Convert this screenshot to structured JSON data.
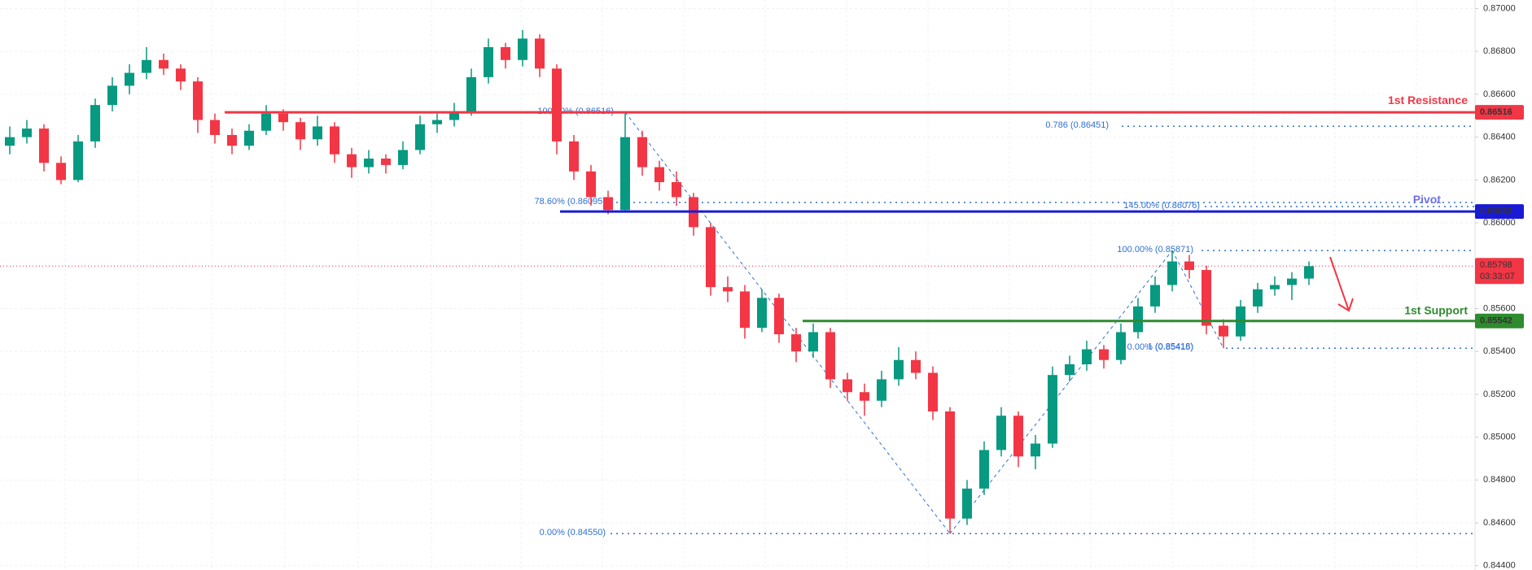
{
  "chart_data": {
    "type": "candlestick",
    "ohlc": [
      [
        0.8636,
        0.8645,
        0.8632,
        0.864
      ],
      [
        0.864,
        0.8648,
        0.8637,
        0.8644
      ],
      [
        0.8644,
        0.8646,
        0.8624,
        0.8628
      ],
      [
        0.8628,
        0.8631,
        0.8618,
        0.862
      ],
      [
        0.862,
        0.8641,
        0.8619,
        0.8638
      ],
      [
        0.8638,
        0.8658,
        0.8635,
        0.8655
      ],
      [
        0.8655,
        0.8668,
        0.8652,
        0.8664
      ],
      [
        0.8664,
        0.8674,
        0.866,
        0.867
      ],
      [
        0.867,
        0.8682,
        0.8667,
        0.8676
      ],
      [
        0.8676,
        0.8679,
        0.8669,
        0.8672
      ],
      [
        0.8672,
        0.8674,
        0.8662,
        0.8666
      ],
      [
        0.8666,
        0.8668,
        0.8642,
        0.8648
      ],
      [
        0.8648,
        0.8651,
        0.8637,
        0.8641
      ],
      [
        0.8641,
        0.8644,
        0.8632,
        0.8636
      ],
      [
        0.8636,
        0.8646,
        0.8634,
        0.8643
      ],
      [
        0.8643,
        0.8655,
        0.8641,
        0.8651
      ],
      [
        0.8651,
        0.8653,
        0.8643,
        0.8647
      ],
      [
        0.8647,
        0.8649,
        0.8634,
        0.8639
      ],
      [
        0.8639,
        0.865,
        0.8636,
        0.8645
      ],
      [
        0.8645,
        0.8647,
        0.8628,
        0.8632
      ],
      [
        0.8632,
        0.8635,
        0.8621,
        0.8626
      ],
      [
        0.8626,
        0.8634,
        0.8623,
        0.863
      ],
      [
        0.863,
        0.8632,
        0.8623,
        0.8627
      ],
      [
        0.8627,
        0.8638,
        0.8625,
        0.8634
      ],
      [
        0.8634,
        0.865,
        0.8632,
        0.8646
      ],
      [
        0.8646,
        0.8651,
        0.8642,
        0.8648
      ],
      [
        0.8648,
        0.8656,
        0.8645,
        0.8652
      ],
      [
        0.8652,
        0.8672,
        0.865,
        0.8668
      ],
      [
        0.8668,
        0.8686,
        0.8665,
        0.8682
      ],
      [
        0.8682,
        0.8684,
        0.8672,
        0.8676
      ],
      [
        0.8676,
        0.869,
        0.8673,
        0.8686
      ],
      [
        0.8686,
        0.8688,
        0.8668,
        0.8672
      ],
      [
        0.8672,
        0.8674,
        0.8632,
        0.8638
      ],
      [
        0.8638,
        0.8641,
        0.862,
        0.8624
      ],
      [
        0.8624,
        0.8627,
        0.8608,
        0.8612
      ],
      [
        0.8612,
        0.8615,
        0.8604,
        0.8606
      ],
      [
        0.8606,
        0.86516,
        0.8605,
        0.864
      ],
      [
        0.864,
        0.8643,
        0.8622,
        0.8626
      ],
      [
        0.8626,
        0.8629,
        0.8615,
        0.8619
      ],
      [
        0.8619,
        0.8624,
        0.8608,
        0.8612
      ],
      [
        0.8612,
        0.8614,
        0.8594,
        0.8598
      ],
      [
        0.8598,
        0.86,
        0.8566,
        0.857
      ],
      [
        0.857,
        0.8575,
        0.8563,
        0.8568
      ],
      [
        0.8568,
        0.8571,
        0.8546,
        0.8551
      ],
      [
        0.8551,
        0.8569,
        0.8549,
        0.8565
      ],
      [
        0.8565,
        0.8567,
        0.8544,
        0.8548
      ],
      [
        0.8548,
        0.8551,
        0.8535,
        0.854
      ],
      [
        0.854,
        0.8553,
        0.8537,
        0.8549
      ],
      [
        0.8549,
        0.8551,
        0.8523,
        0.8527
      ],
      [
        0.8527,
        0.853,
        0.8517,
        0.8521
      ],
      [
        0.8521,
        0.8525,
        0.851,
        0.8517
      ],
      [
        0.8517,
        0.8531,
        0.8514,
        0.8527
      ],
      [
        0.8527,
        0.8542,
        0.8524,
        0.8536
      ],
      [
        0.8536,
        0.854,
        0.8527,
        0.853
      ],
      [
        0.853,
        0.8533,
        0.8508,
        0.8512
      ],
      [
        0.8512,
        0.8514,
        0.8455,
        0.8462
      ],
      [
        0.8462,
        0.848,
        0.8459,
        0.8476
      ],
      [
        0.8476,
        0.8498,
        0.8473,
        0.8494
      ],
      [
        0.8494,
        0.8514,
        0.8491,
        0.851
      ],
      [
        0.851,
        0.8512,
        0.8486,
        0.8491
      ],
      [
        0.8491,
        0.8501,
        0.8485,
        0.8497
      ],
      [
        0.8497,
        0.8533,
        0.8495,
        0.8529
      ],
      [
        0.8529,
        0.8538,
        0.8526,
        0.8534
      ],
      [
        0.8534,
        0.8545,
        0.8531,
        0.8541
      ],
      [
        0.8541,
        0.8543,
        0.8532,
        0.8536
      ],
      [
        0.8536,
        0.8553,
        0.8534,
        0.8549
      ],
      [
        0.8549,
        0.8565,
        0.8546,
        0.8561
      ],
      [
        0.8561,
        0.8575,
        0.8558,
        0.8571
      ],
      [
        0.8571,
        0.85871,
        0.8568,
        0.8582
      ],
      [
        0.8582,
        0.8585,
        0.8574,
        0.8578
      ],
      [
        0.8578,
        0.858,
        0.8548,
        0.8552
      ],
      [
        0.8552,
        0.8555,
        0.85415,
        0.8547
      ],
      [
        0.8547,
        0.8564,
        0.8545,
        0.8561
      ],
      [
        0.8561,
        0.8572,
        0.8558,
        0.8569
      ],
      [
        0.8569,
        0.8575,
        0.8566,
        0.8571
      ],
      [
        0.8571,
        0.8577,
        0.8564,
        0.8574
      ],
      [
        0.8574,
        0.8582,
        0.8571,
        0.85798
      ]
    ],
    "up_color": "#089981",
    "down_color": "#f23645",
    "ylim": [
      0.8438,
      0.8704
    ],
    "yticks": [
      {
        "value": 0.844,
        "label": "0.84400"
      },
      {
        "value": 0.846,
        "label": "0.84600"
      },
      {
        "value": 0.848,
        "label": "0.84800"
      },
      {
        "value": 0.85,
        "label": "0.85000"
      },
      {
        "value": 0.852,
        "label": "0.85200"
      },
      {
        "value": 0.854,
        "label": "0.85400"
      },
      {
        "value": 0.856,
        "label": "0.85600"
      },
      {
        "value": 0.858,
        "label": "0.85800"
      },
      {
        "value": 0.86,
        "label": "0.86000"
      },
      {
        "value": 0.862,
        "label": "0.86200"
      },
      {
        "value": 0.864,
        "label": "0.86400"
      },
      {
        "value": 0.866,
        "label": "0.86600"
      },
      {
        "value": 0.868,
        "label": "0.86800"
      },
      {
        "value": 0.87,
        "label": "0.87000"
      }
    ],
    "grid": true,
    "levels": [
      {
        "name": "1st Resistance",
        "value": 0.86516,
        "label": "0.86516",
        "color": "#f23645"
      },
      {
        "name": "Pivot",
        "value": 0.86053,
        "label": "0.86053",
        "color": "#1a1ad6"
      },
      {
        "name": "1st Support",
        "value": 0.85542,
        "label": "0.85542",
        "color": "#2e8b2e"
      }
    ],
    "current_price": {
      "value": 0.85798,
      "label": "0.85798",
      "countdown": "03:33:07",
      "color": "#f23645"
    },
    "fib_labels": [
      {
        "text": "100.00% (0.86516)",
        "value": 0.86516
      },
      {
        "text": "0.786 (0.86451)",
        "value": 0.86451
      },
      {
        "text": "78.60% (0.86095)",
        "value": 0.86095
      },
      {
        "text": "145.00% (0.86076)",
        "value": 0.86076
      },
      {
        "text": "100.00% (0.85871)",
        "value": 0.85871
      },
      {
        "text": "1 (0.85418)",
        "value": 0.85418
      },
      {
        "text": "0.00% (0.85415)",
        "value": 0.85415
      },
      {
        "text": "0.00% (0.84550)",
        "value": 0.8455
      }
    ]
  }
}
